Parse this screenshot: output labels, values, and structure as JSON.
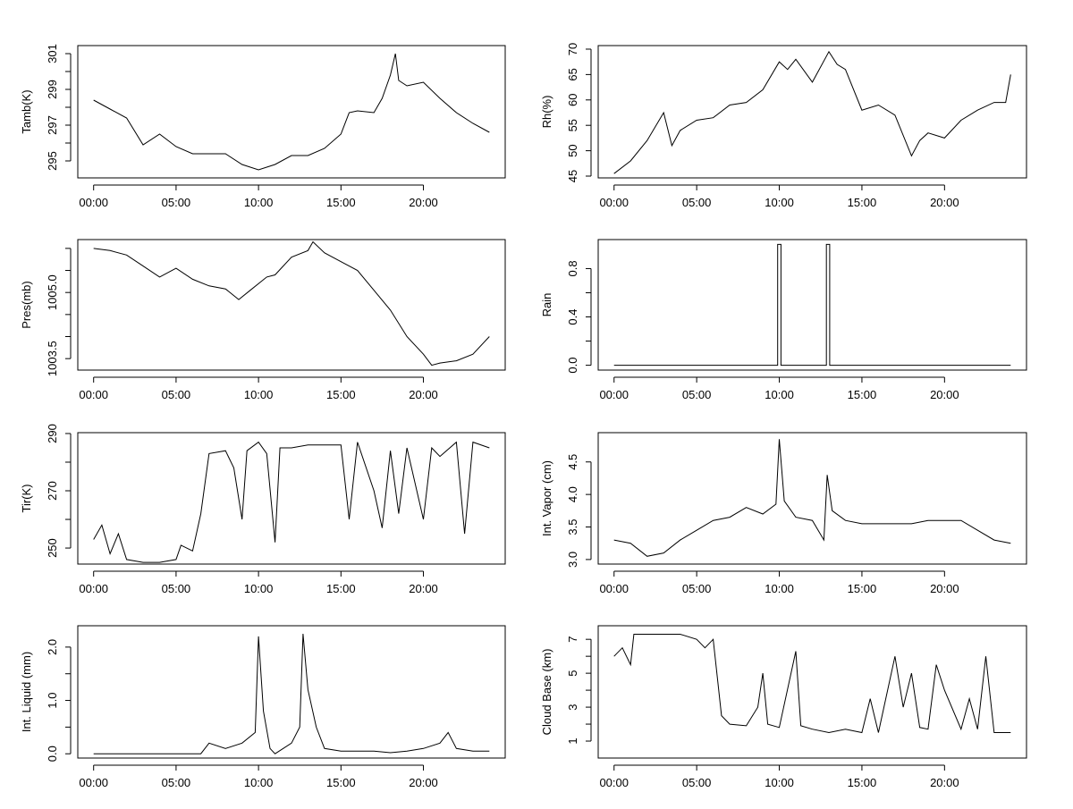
{
  "chart_data": [
    {
      "type": "line",
      "ylabel": "Tamb(K)",
      "xlim": [
        -0.96,
        24.96
      ],
      "ylim": [
        294.05,
        301.45
      ],
      "yticks": [
        {
          "v": 295,
          "label": "295"
        },
        {
          "v": 296
        },
        {
          "v": 297,
          "label": "297"
        },
        {
          "v": 298
        },
        {
          "v": 299,
          "label": "299"
        },
        {
          "v": 300
        },
        {
          "v": 301,
          "label": "301"
        }
      ],
      "x": [
        0,
        1,
        2,
        3,
        4,
        5,
        6,
        7,
        8,
        9,
        10,
        11,
        12,
        13,
        14,
        15,
        15.5,
        16,
        17,
        17.5,
        18,
        18.3,
        18.5,
        19,
        20,
        21,
        22,
        23,
        24
      ],
      "y": [
        298.4,
        297.9,
        297.4,
        295.9,
        296.5,
        295.8,
        295.4,
        295.4,
        295.4,
        294.8,
        294.5,
        294.8,
        295.3,
        295.3,
        295.7,
        296.5,
        297.7,
        297.8,
        297.7,
        298.5,
        299.8,
        301.0,
        299.5,
        299.2,
        299.4,
        298.5,
        297.7,
        297.1,
        296.6
      ]
    },
    {
      "type": "line",
      "ylabel": "Rh(%)",
      "xlim": [
        -0.96,
        24.96
      ],
      "ylim": [
        44.65,
        70.7
      ],
      "yticks": [
        {
          "v": 45,
          "label": "45"
        },
        {
          "v": 50,
          "label": "50"
        },
        {
          "v": 55,
          "label": "55"
        },
        {
          "v": 60,
          "label": "60"
        },
        {
          "v": 65,
          "label": "65"
        },
        {
          "v": 70,
          "label": "70"
        }
      ],
      "x": [
        0,
        1,
        2,
        3,
        3.5,
        4,
        5,
        6,
        7,
        8,
        9,
        10,
        10.5,
        11,
        12,
        13,
        13.5,
        14,
        15,
        16,
        17,
        18,
        18.5,
        19,
        20,
        21,
        22,
        23,
        23.7,
        24
      ],
      "y": [
        45.5,
        48,
        52,
        57.5,
        51,
        54,
        56,
        56.5,
        59,
        59.5,
        62,
        67.5,
        66,
        68,
        63.5,
        69.5,
        67,
        66,
        58,
        59,
        57,
        49,
        52,
        53.5,
        52.5,
        56,
        58,
        59.5,
        59.5,
        65
      ]
    },
    {
      "type": "line",
      "ylabel": "Pres(mb)",
      "xlim": [
        -0.96,
        24.96
      ],
      "ylim": [
        1003.24,
        1006.2
      ],
      "yticks": [
        {
          "v": 1003.5,
          "label": "1003.5"
        },
        {
          "v": 1004.0
        },
        {
          "v": 1004.5
        },
        {
          "v": 1005.0,
          "label": "1005.0"
        },
        {
          "v": 1005.5
        },
        {
          "v": 1006.0
        }
      ],
      "x": [
        0,
        1,
        2,
        3,
        4,
        5,
        6,
        7,
        8,
        8.8,
        9.5,
        10.5,
        11,
        12,
        13,
        13.3,
        14,
        15,
        16,
        17,
        18,
        19,
        20,
        20.5,
        21,
        22,
        23,
        24
      ],
      "y": [
        1006.0,
        1005.95,
        1005.85,
        1005.6,
        1005.35,
        1005.55,
        1005.3,
        1005.15,
        1005.08,
        1004.84,
        1005.05,
        1005.35,
        1005.4,
        1005.8,
        1005.95,
        1006.15,
        1005.9,
        1005.7,
        1005.5,
        1005.05,
        1004.6,
        1004.0,
        1003.6,
        1003.35,
        1003.4,
        1003.45,
        1003.6,
        1004.0
      ]
    },
    {
      "type": "line",
      "ylabel": "Rain",
      "xlim": [
        -0.96,
        24.96
      ],
      "ylim": [
        -0.04,
        1.04
      ],
      "yticks": [
        {
          "v": 0,
          "label": "0.0"
        },
        {
          "v": 0.2
        },
        {
          "v": 0.4,
          "label": "0.4"
        },
        {
          "v": 0.6
        },
        {
          "v": 0.8,
          "label": "0.8"
        }
      ],
      "x": [
        0,
        9.9,
        9.9,
        10.1,
        10.1,
        12.85,
        12.85,
        13.05,
        13.05,
        24
      ],
      "y": [
        0,
        0,
        1,
        1,
        0,
        0,
        1,
        1,
        0,
        0
      ]
    },
    {
      "type": "line",
      "ylabel": "Tir(K)",
      "xlim": [
        -0.96,
        24.96
      ],
      "ylim": [
        244.4,
        290.3
      ],
      "yticks": [
        {
          "v": 250,
          "label": "250"
        },
        {
          "v": 260
        },
        {
          "v": 270,
          "label": "270"
        },
        {
          "v": 280
        },
        {
          "v": 290,
          "label": "290"
        }
      ],
      "x": [
        0,
        0.5,
        1,
        1.5,
        2,
        3,
        4,
        5,
        5.3,
        6,
        6.5,
        7,
        8,
        8.5,
        9,
        9.3,
        10,
        10.5,
        11,
        11.3,
        12,
        13,
        14,
        15,
        15.5,
        16,
        17,
        17.5,
        18,
        18.5,
        19,
        20,
        20.5,
        21,
        22,
        22.5,
        23,
        24
      ],
      "y": [
        253,
        258,
        248,
        255,
        246,
        245,
        245,
        246,
        251,
        249,
        262,
        283,
        284,
        278,
        260,
        284,
        287,
        283,
        252,
        285,
        285,
        286,
        286,
        286,
        260,
        287,
        270,
        257,
        284,
        262,
        285,
        260,
        285,
        282,
        287,
        255,
        287,
        285
      ]
    },
    {
      "type": "line",
      "ylabel": "Int. Vapor (cm)",
      "xlim": [
        -0.96,
        24.96
      ],
      "ylim": [
        2.93,
        4.95
      ],
      "yticks": [
        {
          "v": 3.0,
          "label": "3.0"
        },
        {
          "v": 3.5,
          "label": "3.5"
        },
        {
          "v": 4.0,
          "label": "4.0"
        },
        {
          "v": 4.5,
          "label": "4.5"
        }
      ],
      "x": [
        0,
        1,
        2,
        3,
        4,
        5,
        6,
        7,
        8,
        9,
        9.8,
        10,
        10.3,
        11,
        12,
        12.7,
        12.9,
        13.2,
        14,
        15,
        16,
        17,
        18,
        19,
        20,
        21,
        22,
        23,
        24
      ],
      "y": [
        3.3,
        3.25,
        3.05,
        3.1,
        3.3,
        3.45,
        3.6,
        3.65,
        3.8,
        3.7,
        3.85,
        4.85,
        3.9,
        3.65,
        3.6,
        3.3,
        4.3,
        3.75,
        3.6,
        3.55,
        3.55,
        3.55,
        3.55,
        3.6,
        3.6,
        3.6,
        3.45,
        3.3,
        3.25
      ]
    },
    {
      "type": "line",
      "ylabel": "Int. Liquid (mm)",
      "xlim": [
        -0.96,
        24.96
      ],
      "ylim": [
        -0.08,
        2.4
      ],
      "yticks": [
        {
          "v": 0,
          "label": "0.0"
        },
        {
          "v": 0.5
        },
        {
          "v": 1.0,
          "label": "1.0"
        },
        {
          "v": 1.5
        },
        {
          "v": 2.0,
          "label": "2.0"
        }
      ],
      "x": [
        0,
        6.5,
        7,
        8,
        9,
        9.8,
        10,
        10.3,
        10.7,
        11,
        12,
        12.5,
        12.7,
        13,
        13.5,
        14,
        15,
        16,
        17,
        18,
        19,
        20,
        21,
        21.5,
        22,
        23,
        24
      ],
      "y": [
        0,
        0,
        0.2,
        0.1,
        0.2,
        0.4,
        2.2,
        0.8,
        0.1,
        0,
        0.2,
        0.5,
        2.25,
        1.2,
        0.5,
        0.1,
        0.05,
        0.05,
        0.05,
        0.02,
        0.05,
        0.1,
        0.2,
        0.4,
        0.1,
        0.05,
        0.05
      ]
    },
    {
      "type": "line",
      "ylabel": "Cloud Base (km)",
      "xlim": [
        -0.96,
        24.96
      ],
      "ylim": [
        0,
        7.8
      ],
      "yticks": [
        {
          "v": 1,
          "label": "1"
        },
        {
          "v": 2
        },
        {
          "v": 3,
          "label": "3"
        },
        {
          "v": 4
        },
        {
          "v": 5,
          "label": "5"
        },
        {
          "v": 6
        },
        {
          "v": 7,
          "label": "7"
        }
      ],
      "x": [
        0,
        0.5,
        1,
        1.2,
        2,
        3,
        4,
        5,
        5.5,
        6,
        6.5,
        7,
        8,
        8.7,
        9,
        9.3,
        10,
        11,
        11.3,
        12,
        13,
        14,
        15,
        15.5,
        16,
        17,
        17.5,
        18,
        18.5,
        19,
        19.5,
        20,
        21,
        21.5,
        22,
        22.5,
        23,
        24
      ],
      "y": [
        6,
        6.5,
        5.5,
        7.3,
        7.3,
        7.3,
        7.3,
        7.0,
        6.5,
        7,
        2.5,
        2,
        1.9,
        3,
        5,
        2,
        1.8,
        6.3,
        1.9,
        1.7,
        1.5,
        1.7,
        1.5,
        3.5,
        1.5,
        6,
        3,
        5,
        1.8,
        1.7,
        5.5,
        4,
        1.7,
        3.5,
        1.7,
        6,
        1.5,
        1.5
      ]
    }
  ],
  "xticks": [
    {
      "v": 0,
      "label": "00:00"
    },
    {
      "v": 5,
      "label": "05:00"
    },
    {
      "v": 10,
      "label": "10:00"
    },
    {
      "v": 15,
      "label": "15:00"
    },
    {
      "v": 20,
      "label": "20:00"
    }
  ]
}
